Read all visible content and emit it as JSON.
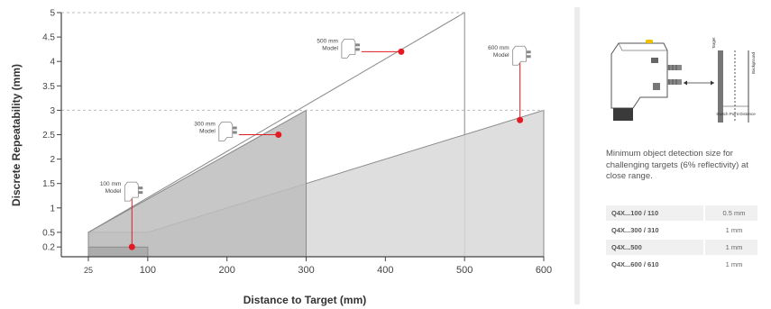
{
  "chart_data": {
    "type": "area",
    "xlabel": "Distance to Target (mm)",
    "ylabel": "Discrete Repeatability (mm)",
    "xlim": [
      0,
      600
    ],
    "ylim": [
      0,
      5
    ],
    "xticks": [
      25,
      100,
      200,
      300,
      400,
      500,
      600
    ],
    "yticks": [
      0.2,
      0.5,
      1,
      1.5,
      2,
      2.5,
      3,
      3.5,
      4,
      4.5,
      5
    ],
    "ytick_labels": [
      "0.2",
      "0.5",
      "1",
      "1.5",
      "2",
      "2.5",
      "3",
      "3.5",
      "4",
      "4.5",
      "5"
    ],
    "series": [
      {
        "name": "500 mm Model",
        "points": [
          [
            25,
            0.5
          ],
          [
            500,
            5
          ],
          [
            500,
            0
          ]
        ],
        "color": "#ffffff"
      },
      {
        "name": "600 mm Model",
        "points": [
          [
            25,
            0.5
          ],
          [
            100,
            0.5
          ],
          [
            600,
            3
          ],
          [
            600,
            0
          ]
        ],
        "color": "#d8d8d8"
      },
      {
        "name": "300 mm Model",
        "points": [
          [
            25,
            0.5
          ],
          [
            300,
            3
          ],
          [
            300,
            0
          ]
        ],
        "color": "#bdbdbd"
      },
      {
        "name": "100 mm Model",
        "points": [
          [
            25,
            0.2
          ],
          [
            100,
            0.2
          ],
          [
            100,
            0
          ]
        ],
        "color": "#a8a8a8"
      }
    ],
    "annotations": [
      {
        "label": "100 mm\nModel",
        "point": [
          80,
          0.2
        ]
      },
      {
        "label": "300 mm\nModel",
        "point": [
          265,
          2.5
        ]
      },
      {
        "label": "500 mm\nModel",
        "point": [
          420,
          4.2
        ]
      },
      {
        "label": "600 mm\nModel",
        "point": [
          570,
          2.8
        ]
      }
    ],
    "grid": "dashed reference lines at y=3 and y=5"
  },
  "sidebar": {
    "diagram_labels": {
      "target": "Target",
      "background": "Background",
      "switch_point": "Switch Point Distance"
    },
    "description": "Minimum object detection size for challenging targets (6% reflectivity) at close range.",
    "table": [
      {
        "model": "Q4X...100 / 110",
        "value": "0.5 mm"
      },
      {
        "model": "Q4X...300 / 310",
        "value": "1 mm"
      },
      {
        "model": "Q4X...500",
        "value": "1 mm"
      },
      {
        "model": "Q4X...600 / 610",
        "value": "1 mm"
      }
    ]
  },
  "colors": {
    "marker": "#e31b23",
    "axis": "#444444",
    "panel_bg": "#f0f0f0"
  }
}
